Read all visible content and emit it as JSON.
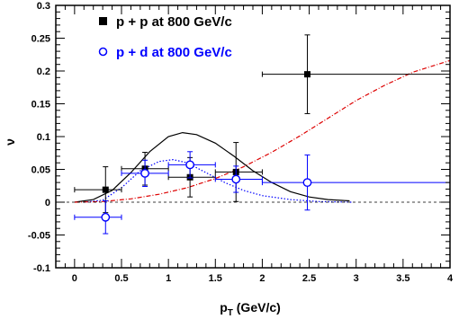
{
  "chart_data": {
    "type": "scatter",
    "xlabel": "p",
    "xlabel_sub": "T",
    "xlabel_unit": "(GeV/c)",
    "ylabel": "ν",
    "xlim": [
      -0.2,
      4.0
    ],
    "ylim": [
      -0.1,
      0.3
    ],
    "x_ticks": [
      "0",
      "0.5",
      "1",
      "1.5",
      "2",
      "2.5",
      "3",
      "3.5",
      "4"
    ],
    "y_ticks": [
      "-0.1",
      "-0.05",
      "0",
      "0.05",
      "0.1",
      "0.15",
      "0.2",
      "0.25",
      "0.3"
    ],
    "legend_position": "top-left",
    "series": [
      {
        "name": "p + p at 800 GeV/c",
        "color": "#000000",
        "marker": "filled-square",
        "points": [
          {
            "x": 0.33,
            "y": 0.019,
            "xerr_lo": 0.33,
            "xerr_hi": 0.17,
            "yerr": 0.035
          },
          {
            "x": 0.75,
            "y": 0.051,
            "xerr_lo": 0.25,
            "xerr_hi": 0.25,
            "yerr": 0.025
          },
          {
            "x": 1.23,
            "y": 0.038,
            "xerr_lo": 0.23,
            "xerr_hi": 0.27,
            "yerr": 0.03
          },
          {
            "x": 1.72,
            "y": 0.046,
            "xerr_lo": 0.22,
            "xerr_hi": 0.28,
            "yerr": 0.045
          },
          {
            "x": 2.48,
            "y": 0.195,
            "xerr_lo": 0.48,
            "xerr_hi": 1.52,
            "yerr": 0.06
          }
        ]
      },
      {
        "name": "p + d at 800 GeV/c",
        "color": "#0000ff",
        "marker": "open-circle",
        "points": [
          {
            "x": 0.33,
            "y": -0.023,
            "xerr_lo": 0.33,
            "xerr_hi": 0.17,
            "yerr": 0.025
          },
          {
            "x": 0.75,
            "y": 0.044,
            "xerr_lo": 0.25,
            "xerr_hi": 0.25,
            "yerr": 0.02
          },
          {
            "x": 1.23,
            "y": 0.057,
            "xerr_lo": 0.23,
            "xerr_hi": 0.27,
            "yerr": 0.02
          },
          {
            "x": 1.72,
            "y": 0.035,
            "xerr_lo": 0.22,
            "xerr_hi": 0.28,
            "yerr": 0.02
          },
          {
            "x": 2.48,
            "y": 0.03,
            "xerr_lo": 0.48,
            "xerr_hi": 1.52,
            "yerr": 0.042
          }
        ]
      }
    ],
    "curves": [
      {
        "color": "#000000",
        "style": "solid",
        "points": [
          [
            0,
            0
          ],
          [
            0.2,
            0.004
          ],
          [
            0.4,
            0.018
          ],
          [
            0.6,
            0.045
          ],
          [
            0.8,
            0.077
          ],
          [
            1.0,
            0.1
          ],
          [
            1.15,
            0.106
          ],
          [
            1.3,
            0.103
          ],
          [
            1.5,
            0.09
          ],
          [
            1.7,
            0.07
          ],
          [
            1.9,
            0.048
          ],
          [
            2.1,
            0.03
          ],
          [
            2.3,
            0.016
          ],
          [
            2.5,
            0.008
          ],
          [
            2.7,
            0.004
          ],
          [
            2.93,
            0.002
          ]
        ]
      },
      {
        "color": "#0000ff",
        "style": "dotted",
        "points": [
          [
            0.1,
            0
          ],
          [
            0.3,
            0.003
          ],
          [
            0.5,
            0.022
          ],
          [
            0.7,
            0.048
          ],
          [
            0.9,
            0.062
          ],
          [
            1.05,
            0.065
          ],
          [
            1.2,
            0.06
          ],
          [
            1.4,
            0.045
          ],
          [
            1.6,
            0.03
          ],
          [
            1.8,
            0.018
          ],
          [
            2.0,
            0.01
          ],
          [
            2.3,
            0.004
          ],
          [
            2.6,
            0.001
          ],
          [
            2.95,
            0
          ]
        ]
      },
      {
        "color": "#dd0000",
        "style": "dash-dot",
        "points": [
          [
            0,
            0
          ],
          [
            0.3,
            0.001
          ],
          [
            0.6,
            0.005
          ],
          [
            0.9,
            0.012
          ],
          [
            1.2,
            0.022
          ],
          [
            1.5,
            0.036
          ],
          [
            1.8,
            0.054
          ],
          [
            2.1,
            0.076
          ],
          [
            2.4,
            0.101
          ],
          [
            2.7,
            0.128
          ],
          [
            3.0,
            0.155
          ],
          [
            3.3,
            0.178
          ],
          [
            3.6,
            0.198
          ],
          [
            4.0,
            0.216
          ]
        ]
      }
    ],
    "reference_line": {
      "y": 0,
      "style": "dashed",
      "color": "#000000"
    }
  }
}
